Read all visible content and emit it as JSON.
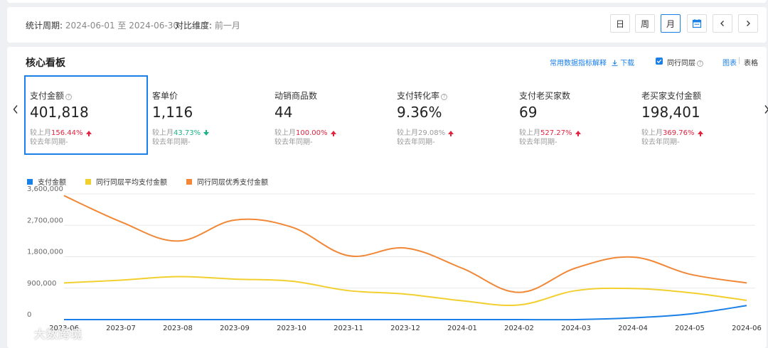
{
  "period": {
    "label": "统计周期:",
    "range": "2024-06-01 至 2024-06-30",
    "compare_label": "对比维度:",
    "compare_value": "前一月",
    "buttons": [
      "日",
      "周",
      "月"
    ]
  },
  "panel": {
    "title": "核心看板",
    "metric_explain": "常用数据指标解释",
    "download": "下载",
    "peer_checkbox": "同行同层",
    "view_chart": "图表",
    "separator": "|",
    "view_table": "表格"
  },
  "kpis": [
    {
      "name": "支付金额",
      "value": "401,818",
      "cmp_label": "较上月",
      "cmp_value": "156.44%",
      "trend": "up",
      "yoy": "较去年同期-",
      "help": true
    },
    {
      "name": "客单价",
      "value": "1,116",
      "cmp_label": "较上月",
      "cmp_value": "43.73%",
      "trend": "down",
      "yoy": "较去年同期-",
      "help": false
    },
    {
      "name": "动销商品数",
      "value": "44",
      "cmp_label": "较上月",
      "cmp_value": "100.00%",
      "trend": "up",
      "yoy": "较去年同期-",
      "help": false
    },
    {
      "name": "支付转化率",
      "value": "9.36%",
      "cmp_label": "较上月",
      "cmp_value": "29.08%",
      "trend": "up",
      "yoy": "较去年同期-",
      "help": true
    },
    {
      "name": "支付老买家数",
      "value": "69",
      "cmp_label": "较上月",
      "cmp_value": "527.27%",
      "trend": "up",
      "yoy": "较去年同期-",
      "help": false
    },
    {
      "name": "老买家支付金额",
      "value": "198,401",
      "cmp_label": "较上月",
      "cmp_value": "369.76%",
      "trend": "up",
      "yoy": "较去年同期-",
      "help": false
    }
  ],
  "watermark": "大数跨境",
  "colors": {
    "accent": "#1a7fe6",
    "up": "#e2233f",
    "down": "#1bb386",
    "series1": "#1a7fe6",
    "series2": "#f2cf2e",
    "series3": "#f08838"
  },
  "icons": {
    "calendar": "calendar-icon",
    "prev": "chevron-left-icon",
    "next": "chevron-right-icon",
    "download": "download-icon",
    "help": "question-circle-icon"
  },
  "chart_data": {
    "type": "line",
    "categories": [
      "2023-06",
      "2023-07",
      "2023-08",
      "2023-09",
      "2023-10",
      "2023-11",
      "2023-12",
      "2024-01",
      "2024-02",
      "2024-03",
      "2024-04",
      "2024-05",
      "2024-06"
    ],
    "y_ticks": [
      "0",
      "900,000",
      "1,800,000",
      "2,700,000",
      "3,600,000"
    ],
    "ylim": [
      0,
      3600000
    ],
    "grid": true,
    "legend_position": "top-left",
    "series": [
      {
        "name": "支付金额",
        "color": "#1a7fe6",
        "values": [
          0,
          0,
          0,
          0,
          0,
          0,
          0,
          0,
          0,
          0,
          50000,
          160000,
          401818
        ]
      },
      {
        "name": "同行同层平均支付金额",
        "color": "#f2cf2e",
        "values": [
          1050000,
          1130000,
          1230000,
          1160000,
          1100000,
          830000,
          730000,
          540000,
          420000,
          830000,
          890000,
          770000,
          550000
        ]
      },
      {
        "name": "同行同层优秀支付金额",
        "color": "#f08838",
        "values": [
          3550000,
          2800000,
          2250000,
          2850000,
          2650000,
          1830000,
          2050000,
          1470000,
          780000,
          1480000,
          1790000,
          1300000,
          1050000
        ]
      }
    ]
  }
}
